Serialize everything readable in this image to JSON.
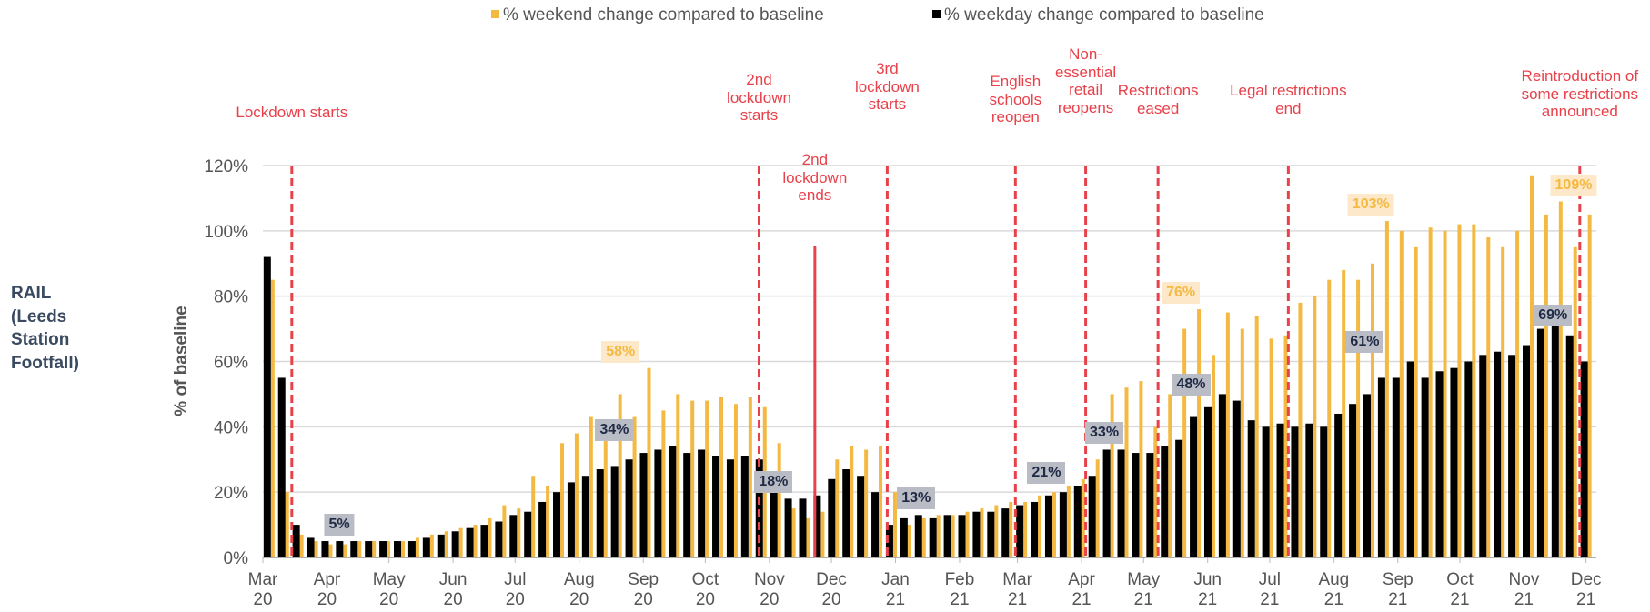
{
  "chart_data": {
    "type": "bar",
    "side_label": "RAIL (Leeds Station Footfall)",
    "y_label": "% of baseline",
    "grid": true,
    "legend": "top",
    "xlim": [
      0,
      645
    ],
    "xticks": [
      {
        "value": 0,
        "label": "Mar 20"
      },
      {
        "value": 31,
        "label": "Apr 20"
      },
      {
        "value": 61,
        "label": "May 20"
      },
      {
        "value": 92,
        "label": "Jun 20"
      },
      {
        "value": 122,
        "label": "Jul 20"
      },
      {
        "value": 153,
        "label": "Aug 20"
      },
      {
        "value": 184,
        "label": "Sep 20"
      },
      {
        "value": 214,
        "label": "Oct 20"
      },
      {
        "value": 245,
        "label": "Nov 20"
      },
      {
        "value": 275,
        "label": "Dec 20"
      },
      {
        "value": 306,
        "label": "Jan 21"
      },
      {
        "value": 337,
        "label": "Feb 21"
      },
      {
        "value": 365,
        "label": "Mar 21"
      },
      {
        "value": 396,
        "label": "Apr 21"
      },
      {
        "value": 426,
        "label": "May 21"
      },
      {
        "value": 457,
        "label": "Jun 21"
      },
      {
        "value": 487,
        "label": "Jul 21"
      },
      {
        "value": 518,
        "label": "Aug 21"
      },
      {
        "value": 549,
        "label": "Sep 21"
      },
      {
        "value": 579,
        "label": "Oct 21"
      },
      {
        "value": 610,
        "label": "Nov 21"
      },
      {
        "value": 640,
        "label": "Dec 21"
      }
    ],
    "ylim": [
      0,
      120
    ],
    "yticks": [
      {
        "value": 0,
        "label": "0%"
      },
      {
        "value": 20,
        "label": "20%"
      },
      {
        "value": 40,
        "label": "40%"
      },
      {
        "value": 60,
        "label": "60%"
      },
      {
        "value": 80,
        "label": "80%"
      },
      {
        "value": 100,
        "label": "100%"
      },
      {
        "value": 120,
        "label": "120%"
      }
    ],
    "x": [
      3,
      10,
      17,
      24,
      31,
      38,
      45,
      52,
      59,
      66,
      73,
      80,
      87,
      94,
      101,
      108,
      115,
      122,
      129,
      136,
      143,
      150,
      157,
      164,
      171,
      178,
      185,
      192,
      199,
      206,
      213,
      220,
      227,
      234,
      241,
      248,
      255,
      262,
      269,
      276,
      283,
      290,
      297,
      304,
      311,
      318,
      325,
      332,
      339,
      346,
      353,
      360,
      367,
      374,
      381,
      388,
      395,
      402,
      409,
      416,
      423,
      430,
      437,
      444,
      451,
      458,
      465,
      472,
      479,
      486,
      493,
      500,
      507,
      514,
      521,
      528,
      535,
      542,
      549,
      556,
      563,
      570,
      577,
      584,
      591,
      598,
      605,
      612,
      619,
      626,
      633,
      640
    ],
    "series": [
      {
        "name": "% weekend change compared to baseline",
        "color": "#f4b942",
        "values": [
          85,
          20,
          7,
          5,
          4,
          4,
          5,
          5,
          5,
          5,
          6,
          7,
          8,
          9,
          10,
          12,
          16,
          15,
          25,
          22,
          35,
          38,
          43,
          40,
          50,
          43,
          58,
          45,
          50,
          48,
          48,
          49,
          47,
          49,
          46,
          35,
          15,
          12,
          14,
          30,
          34,
          33,
          34,
          20,
          10,
          12,
          13,
          13,
          14,
          15,
          16,
          17,
          17,
          19,
          20,
          22,
          24,
          30,
          50,
          52,
          54,
          40,
          50,
          70,
          76,
          62,
          75,
          70,
          74,
          67,
          68,
          78,
          80,
          85,
          88,
          85,
          90,
          103,
          100,
          95,
          101,
          100,
          102,
          102,
          98,
          95,
          100,
          117,
          105,
          109,
          95,
          105
        ]
      },
      {
        "name": "% weekday change compared to baseline",
        "color": "#000000",
        "values": [
          92,
          55,
          10,
          6,
          5,
          5,
          5,
          5,
          5,
          5,
          5,
          6,
          7,
          8,
          9,
          10,
          11,
          13,
          14,
          17,
          20,
          23,
          25,
          27,
          28,
          30,
          32,
          33,
          34,
          32,
          33,
          31,
          30,
          31,
          30,
          25,
          18,
          18,
          19,
          24,
          27,
          25,
          20,
          10,
          12,
          13,
          12,
          13,
          13,
          14,
          14,
          15,
          16,
          17,
          19,
          20,
          22,
          25,
          33,
          33,
          32,
          32,
          34,
          36,
          43,
          46,
          50,
          48,
          42,
          40,
          41,
          40,
          41,
          40,
          44,
          47,
          50,
          55,
          55,
          60,
          55,
          57,
          58,
          60,
          62,
          63,
          62,
          65,
          70,
          75,
          68,
          60
        ]
      }
    ],
    "annotations": [
      {
        "text": "Lockdown starts",
        "x": 14
      },
      {
        "text": "2nd lockdown starts",
        "x": 240
      },
      {
        "text": "2nd lockdown ends",
        "x": 267
      },
      {
        "text": "3rd lockdown starts",
        "x": 302
      },
      {
        "text": "English schools reopen",
        "x": 364
      },
      {
        "text": "Non-essential retail reopens",
        "x": 398
      },
      {
        "text": "Restrictions eased",
        "x": 433
      },
      {
        "text": "Legal restrictions end",
        "x": 496
      },
      {
        "text": "Reintroduction of some restrictions announced",
        "x": 637
      }
    ],
    "callouts": [
      {
        "label": "5%",
        "value": 5,
        "x": 37,
        "color": "#000000"
      },
      {
        "label": "58%",
        "value": 58,
        "x": 173,
        "color": "#f4b942"
      },
      {
        "label": "34%",
        "value": 34,
        "x": 170,
        "color": "#000000"
      },
      {
        "label": "18%",
        "value": 18,
        "x": 247,
        "color": "#000000"
      },
      {
        "label": "13%",
        "value": 13,
        "x": 316,
        "color": "#000000"
      },
      {
        "label": "21%",
        "value": 21,
        "x": 379,
        "color": "#000000"
      },
      {
        "label": "33%",
        "value": 33,
        "x": 407,
        "color": "#000000"
      },
      {
        "label": "76%",
        "value": 76,
        "x": 444,
        "color": "#f4b942"
      },
      {
        "label": "48%",
        "value": 48,
        "x": 449,
        "color": "#000000"
      },
      {
        "label": "103%",
        "value": 103,
        "x": 536,
        "color": "#f4b942"
      },
      {
        "label": "61%",
        "value": 61,
        "x": 533,
        "color": "#000000"
      },
      {
        "label": "69%",
        "value": 69,
        "x": 624,
        "color": "#000000"
      },
      {
        "label": "109%",
        "value": 109,
        "x": 634,
        "color": "#f4b942"
      }
    ]
  }
}
